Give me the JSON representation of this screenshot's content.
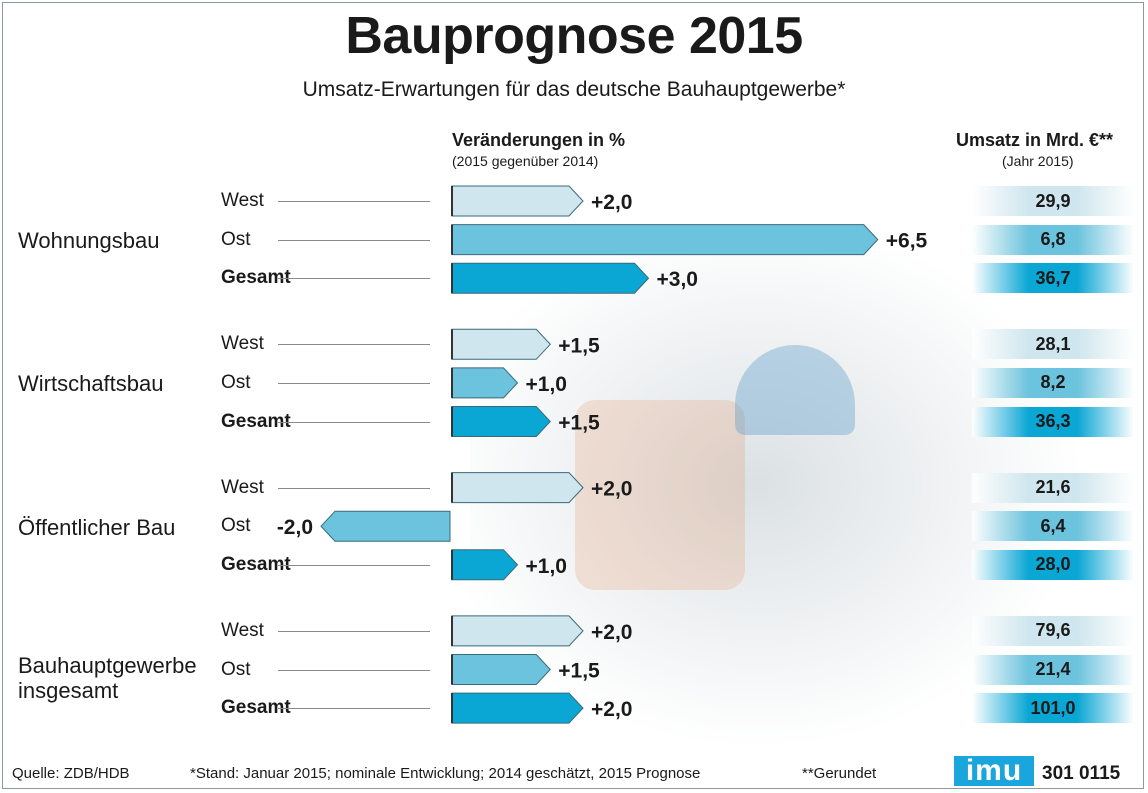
{
  "title": "Bauprognose 2015",
  "subtitle": "Umsatz-Erwartungen für das deutsche Bauhauptgewerbe*",
  "left_header": "Veränderungen in %",
  "left_subheader": "(2015 gegenüber 2014)",
  "right_header": "Umsatz in Mrd. €**",
  "right_subheader": "(Jahr 2015)",
  "footer": {
    "source": "Quelle: ZDB/HDB",
    "note": "*Stand: Januar 2015; nominale Entwicklung; 2014 geschätzt, 2015 Prognose",
    "rounded": "**Gerundet",
    "logo": "imu",
    "code": "301 0115"
  },
  "colors": {
    "west": "#cfe6ee",
    "ost": "#6cc3dd",
    "gesamt": "#0aa6d4",
    "outline": "#3a6a7a"
  },
  "categories": [
    {
      "name": "Wohnungsbau",
      "rows": [
        {
          "label": "West",
          "change": 2.0,
          "change_label": "+2,0",
          "revenue": "29,9"
        },
        {
          "label": "Ost",
          "change": 6.5,
          "change_label": "+6,5",
          "revenue": "6,8"
        },
        {
          "label": "Gesamt",
          "change": 3.0,
          "change_label": "+3,0",
          "revenue": "36,7"
        }
      ]
    },
    {
      "name": "Wirtschaftsbau",
      "rows": [
        {
          "label": "West",
          "change": 1.5,
          "change_label": "+1,5",
          "revenue": "28,1"
        },
        {
          "label": "Ost",
          "change": 1.0,
          "change_label": "+1,0",
          "revenue": "8,2"
        },
        {
          "label": "Gesamt",
          "change": 1.5,
          "change_label": "+1,5",
          "revenue": "36,3"
        }
      ]
    },
    {
      "name": "Öffentlicher Bau",
      "rows": [
        {
          "label": "West",
          "change": 2.0,
          "change_label": "+2,0",
          "revenue": "21,6"
        },
        {
          "label": "Ost",
          "change": -2.0,
          "change_label": "-2,0",
          "revenue": "6,4"
        },
        {
          "label": "Gesamt",
          "change": 1.0,
          "change_label": "+1,0",
          "revenue": "28,0"
        }
      ]
    },
    {
      "name": "Bauhauptgewerbe insgesamt",
      "rows": [
        {
          "label": "West",
          "change": 2.0,
          "change_label": "+2,0",
          "revenue": "79,6"
        },
        {
          "label": "Ost",
          "change": 1.5,
          "change_label": "+1,5",
          "revenue": "21,4"
        },
        {
          "label": "Gesamt",
          "change": 2.0,
          "change_label": "+2,0",
          "revenue": "101,0"
        }
      ]
    }
  ],
  "chart_data": {
    "type": "bar",
    "title": "Bauprognose 2015",
    "subtitle": "Umsatz-Erwartungen für das deutsche Bauhauptgewerbe*",
    "xlabel": "Veränderungen in % (2015 gegenüber 2014)",
    "categories": [
      "Wohnungsbau",
      "Wirtschaftsbau",
      "Öffentlicher Bau",
      "Bauhauptgewerbe insgesamt"
    ],
    "series": [
      {
        "name": "West",
        "values": [
          2.0,
          1.5,
          2.0,
          2.0
        ]
      },
      {
        "name": "Ost",
        "values": [
          6.5,
          1.0,
          -2.0,
          1.5
        ]
      },
      {
        "name": "Gesamt",
        "values": [
          3.0,
          1.5,
          1.0,
          2.0
        ]
      }
    ],
    "revenue_bn_eur_2015": {
      "West": [
        29.9,
        28.1,
        21.6,
        79.6
      ],
      "Ost": [
        6.8,
        8.2,
        6.4,
        21.4
      ],
      "Gesamt": [
        36.7,
        36.3,
        28.0,
        101.0
      ]
    },
    "orientation": "horizontal",
    "grid": false
  }
}
